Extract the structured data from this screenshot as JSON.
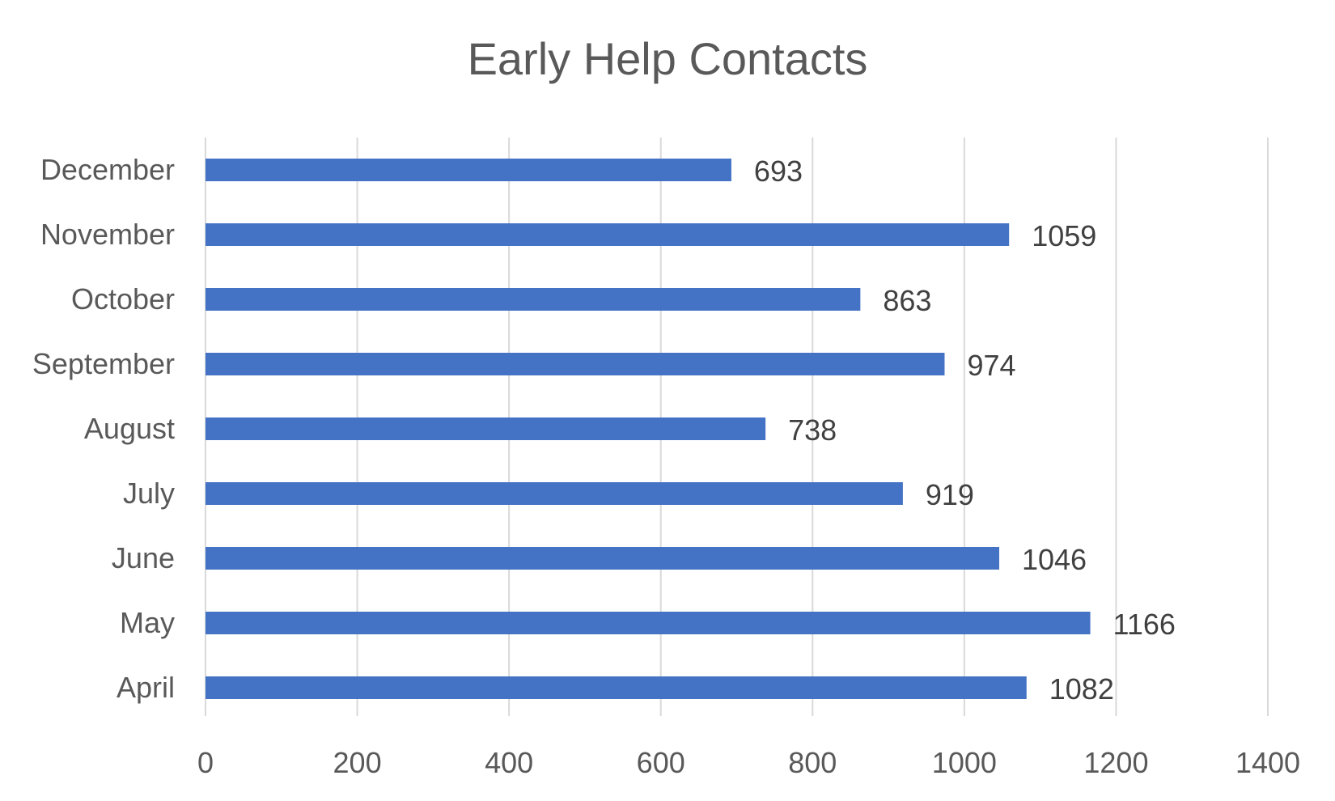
{
  "chart_data": {
    "type": "bar",
    "orientation": "horizontal",
    "title": "Early Help Contacts",
    "xlabel": "",
    "ylabel": "",
    "categories": [
      "December",
      "November",
      "October",
      "September",
      "August",
      "July",
      "June",
      "May",
      "April"
    ],
    "values": [
      693,
      1059,
      863,
      974,
      738,
      919,
      1046,
      1166,
      1082
    ],
    "xlim": [
      0,
      1400
    ],
    "xticks": [
      0,
      200,
      400,
      600,
      800,
      1000,
      1200,
      1400
    ],
    "grid": true,
    "legend": "none",
    "data_labels": true,
    "bar_color": "#4472C4",
    "grid_color": "#D9D9D9"
  }
}
